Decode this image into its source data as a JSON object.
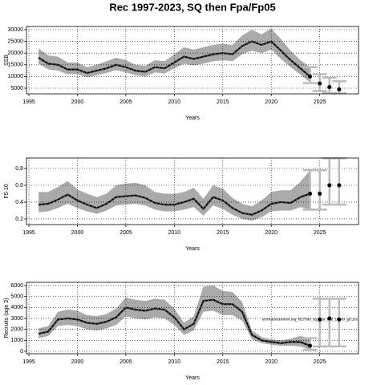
{
  "chart_data": [
    {
      "type": "line",
      "title": "Rec 1997-2023, SQ then Fpa/Fp05",
      "ylabel": "SSB",
      "xlabel": "Years",
      "xlim": [
        1994.75,
        2029
      ],
      "xticks": [
        1995,
        2000,
        2005,
        2010,
        2015,
        2020,
        2025
      ],
      "ylim": [
        2600,
        31370
      ],
      "yticks": [
        5000,
        10000,
        15000,
        20000,
        25000,
        30000
      ],
      "grid": true,
      "line_color": "#000000",
      "band_color": "#aaaaaa",
      "bar_color": "#bbbbbb",
      "x": [
        1996,
        1997,
        1998,
        1999,
        2000,
        2001,
        2002,
        2003,
        2004,
        2005,
        2006,
        2007,
        2008,
        2009,
        2010,
        2011,
        2012,
        2013,
        2014,
        2015,
        2016,
        2017,
        2018,
        2019,
        2020,
        2021,
        2022,
        2023,
        2024
      ],
      "median": [
        18000,
        15500,
        15000,
        13000,
        13000,
        11500,
        12500,
        13500,
        15000,
        14000,
        12500,
        12000,
        14000,
        13500,
        16000,
        18500,
        17500,
        18500,
        19500,
        20000,
        19500,
        23000,
        25000,
        23500,
        25000,
        21000,
        17000,
        13500,
        10000
      ],
      "upper": [
        22000,
        19000,
        18500,
        16000,
        16000,
        14000,
        15000,
        16500,
        18000,
        17000,
        15000,
        14500,
        17000,
        16500,
        19500,
        22500,
        21500,
        22500,
        23500,
        24000,
        23500,
        27500,
        30000,
        28000,
        30500,
        26000,
        21000,
        17000,
        14000
      ],
      "lower": [
        15500,
        13000,
        12500,
        11000,
        11000,
        9700,
        10500,
        11500,
        12700,
        11800,
        10500,
        10000,
        11700,
        11300,
        13500,
        15500,
        14700,
        15500,
        16500,
        17000,
        16500,
        19500,
        21000,
        20000,
        21500,
        17500,
        14000,
        10800,
        7500
      ],
      "proj_x": [
        2024,
        2025,
        2026,
        2027
      ],
      "proj": [
        10000,
        7000,
        5500,
        4500
      ],
      "proj_low": [
        7200,
        3800,
        3000,
        2800
      ],
      "proj_high": [
        14000,
        11000,
        9500,
        8000
      ]
    },
    {
      "type": "line",
      "ylabel": "F5-10",
      "xlabel": "Years",
      "xlim": [
        1994.75,
        2029
      ],
      "xticks": [
        1995,
        2000,
        2005,
        2010,
        2015,
        2020,
        2025
      ],
      "ylim": [
        0.133,
        0.924
      ],
      "yticks": [
        0.2,
        0.4,
        0.6,
        0.8
      ],
      "grid": true,
      "line_color": "#000000",
      "band_color": "#aaaaaa",
      "bar_color": "#bbbbbb",
      "x": [
        1996,
        1997,
        1998,
        1999,
        2000,
        2001,
        2002,
        2003,
        2004,
        2005,
        2006,
        2007,
        2008,
        2009,
        2010,
        2011,
        2012,
        2013,
        2014,
        2015,
        2016,
        2017,
        2018,
        2019,
        2020,
        2021,
        2022,
        2023,
        2024
      ],
      "median": [
        0.37,
        0.38,
        0.43,
        0.49,
        0.42,
        0.37,
        0.33,
        0.38,
        0.46,
        0.47,
        0.48,
        0.45,
        0.39,
        0.37,
        0.37,
        0.4,
        0.44,
        0.32,
        0.46,
        0.42,
        0.33,
        0.27,
        0.25,
        0.3,
        0.38,
        0.4,
        0.39,
        0.46,
        0.5
      ],
      "upper": [
        0.52,
        0.52,
        0.58,
        0.65,
        0.55,
        0.5,
        0.46,
        0.5,
        0.6,
        0.62,
        0.63,
        0.6,
        0.52,
        0.5,
        0.5,
        0.52,
        0.57,
        0.44,
        0.6,
        0.56,
        0.45,
        0.38,
        0.35,
        0.42,
        0.52,
        0.54,
        0.54,
        0.64,
        0.78
      ],
      "lower": [
        0.28,
        0.29,
        0.33,
        0.38,
        0.33,
        0.29,
        0.26,
        0.3,
        0.36,
        0.37,
        0.38,
        0.36,
        0.31,
        0.29,
        0.29,
        0.31,
        0.34,
        0.24,
        0.36,
        0.32,
        0.25,
        0.2,
        0.18,
        0.22,
        0.29,
        0.3,
        0.3,
        0.34,
        0.31
      ],
      "proj_x": [
        2024,
        2025,
        2026,
        2027
      ],
      "proj": [
        0.5,
        0.5,
        0.6,
        0.6
      ],
      "proj_low": [
        0.31,
        0.31,
        0.37,
        0.37
      ],
      "proj_high": [
        0.78,
        0.78,
        0.92,
        0.92
      ]
    },
    {
      "type": "line",
      "ylabel": "Recruits (age 3)",
      "xlabel": "Years",
      "annotation": "stockassessment.org_fit27580_sq_Fpa_trial_18949_g6.1cs",
      "xlim": [
        1994.75,
        2029
      ],
      "xticks": [
        1995,
        2000,
        2005,
        2010,
        2015,
        2020,
        2025
      ],
      "ylim": [
        -220,
        6290
      ],
      "yticks": [
        0,
        1000,
        2000,
        3000,
        4000,
        5000,
        6000
      ],
      "grid": true,
      "line_color": "#000000",
      "band_color": "#aaaaaa",
      "bar_color": "#bbbbbb",
      "x": [
        1996,
        1997,
        1998,
        1999,
        2000,
        2001,
        2002,
        2003,
        2004,
        2005,
        2006,
        2007,
        2008,
        2009,
        2010,
        2011,
        2012,
        2013,
        2014,
        2015,
        2016,
        2017,
        2018,
        2019,
        2020,
        2021,
        2022,
        2023,
        2024
      ],
      "median": [
        1600,
        1800,
        2900,
        3000,
        2900,
        2600,
        2500,
        2700,
        3100,
        4000,
        3800,
        3700,
        3900,
        3800,
        3100,
        2000,
        2500,
        4600,
        4700,
        4300,
        4300,
        3600,
        1500,
        1000,
        850,
        750,
        850,
        850,
        500
      ],
      "upper": [
        2100,
        2300,
        3600,
        3800,
        3700,
        3300,
        3200,
        3400,
        3900,
        4900,
        4700,
        4600,
        4800,
        4700,
        3900,
        2600,
        3200,
        5900,
        6000,
        5500,
        5400,
        4500,
        1900,
        1300,
        1100,
        1000,
        1150,
        1400,
        1200
      ],
      "lower": [
        1200,
        1400,
        2300,
        2400,
        2300,
        2000,
        1900,
        2100,
        2400,
        3200,
        3000,
        2900,
        3100,
        3000,
        2400,
        1500,
        1900,
        3600,
        3700,
        3300,
        3300,
        2800,
        1100,
        750,
        600,
        500,
        500,
        450,
        150
      ],
      "proj_x": [
        2024,
        2025,
        2026,
        2027
      ],
      "proj": [
        500,
        2900,
        3000,
        2900
      ],
      "proj_low": [
        150,
        450,
        450,
        450
      ],
      "proj_high": [
        1200,
        4800,
        4800,
        4800
      ]
    }
  ]
}
